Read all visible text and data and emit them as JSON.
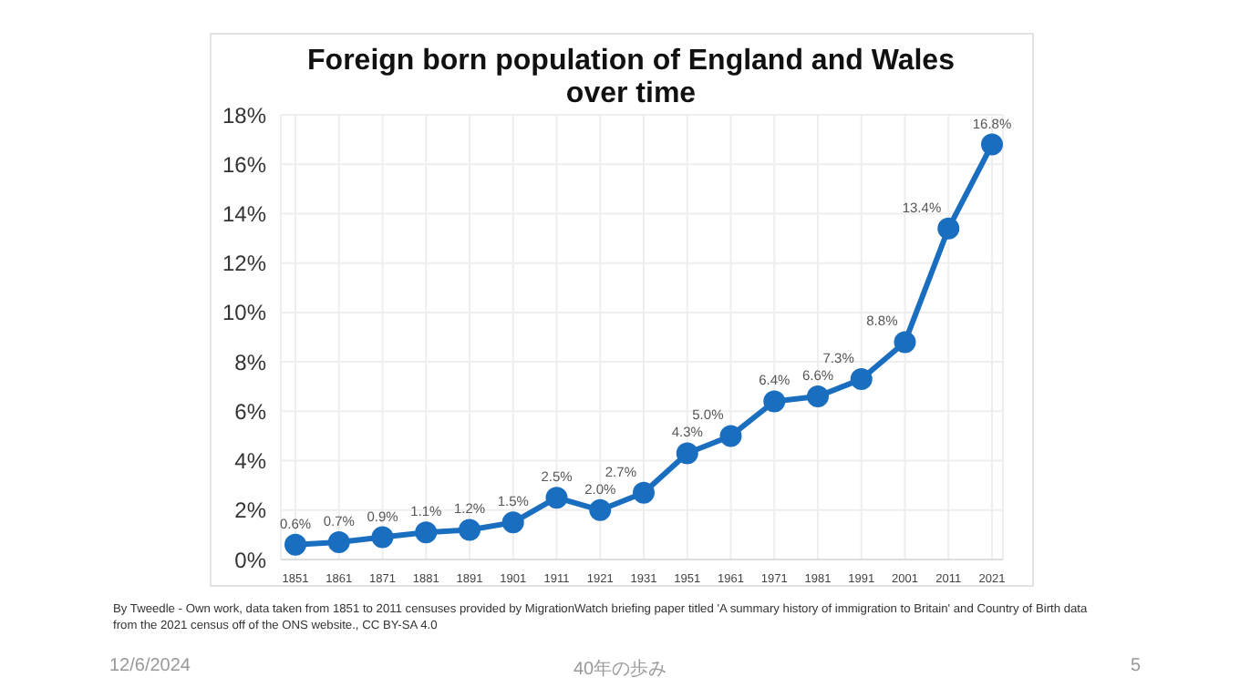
{
  "chart_data": {
    "type": "line",
    "title": "Foreign born population of England and Wales over time",
    "categories": [
      "1851",
      "1861",
      "1871",
      "1881",
      "1891",
      "1901",
      "1911",
      "1921",
      "1931",
      "1951",
      "1961",
      "1971",
      "1981",
      "1991",
      "2001",
      "2011",
      "2021"
    ],
    "series": [
      {
        "color": "#1a6ebf",
        "values": [
          0.6,
          0.7,
          0.9,
          1.1,
          1.2,
          1.5,
          2.5,
          2.0,
          2.7,
          4.3,
          5.0,
          6.4,
          6.6,
          7.3,
          8.8,
          13.4,
          16.8
        ],
        "value_labels": [
          "0.6%",
          "0.7%",
          "0.9%",
          "1.1%",
          "1.2%",
          "1.5%",
          "2.5%",
          "2.0%",
          "2.7%",
          "4.3%",
          "5.0%",
          "6.4%",
          "6.6%",
          "7.3%",
          "8.8%",
          "13.4%",
          "16.8%"
        ]
      }
    ],
    "ylim": [
      0,
      18
    ],
    "yticks": [
      {
        "value": 0,
        "label": "0%"
      },
      {
        "value": 2,
        "label": "2%"
      },
      {
        "value": 4,
        "label": "4%"
      },
      {
        "value": 6,
        "label": "6%"
      },
      {
        "value": 8,
        "label": "8%"
      },
      {
        "value": 10,
        "label": "10%"
      },
      {
        "value": 12,
        "label": "12%"
      },
      {
        "value": 14,
        "label": "14%"
      },
      {
        "value": 16,
        "label": "16%"
      },
      {
        "value": 18,
        "label": "18%"
      }
    ],
    "grid": true,
    "marker": "circle",
    "line_style": "solid",
    "legend": false,
    "annotations": [
      "By Tweedle - Own work, data taken from 1851 to 2011 censuses provided by MigrationWatch briefing paper titled 'A summary history of immigration to Britain' and Country of Birth data from the 2021 census off of the ONS website., CC BY-SA 4.0",
      "12/6/2024",
      "40年の歩み",
      "5"
    ]
  }
}
